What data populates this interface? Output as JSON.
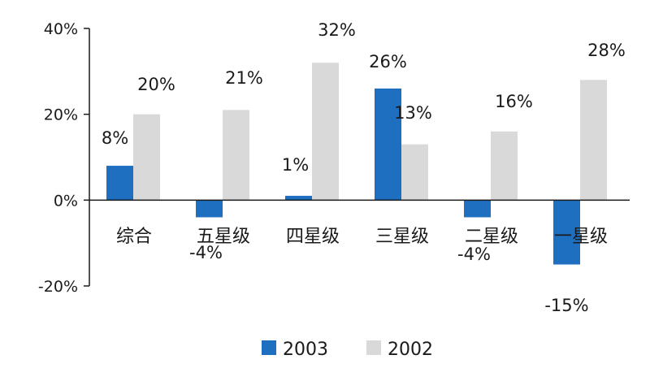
{
  "chart_data": {
    "type": "bar",
    "categories": [
      "综合",
      "五星级",
      "四星级",
      "三星级",
      "二星级",
      "一星级"
    ],
    "series": [
      {
        "name": "2003",
        "color": "#1f6fc1",
        "values": [
          8,
          -4,
          1,
          26,
          -4,
          -15
        ],
        "labels": [
          "8%",
          "-4%",
          "1%",
          "26%",
          "-4%",
          "-15%"
        ]
      },
      {
        "name": "2002",
        "color": "#d9d9d9",
        "values": [
          20,
          21,
          32,
          13,
          16,
          28
        ],
        "labels": [
          "20%",
          "21%",
          "32%",
          "13%",
          "16%",
          "28%"
        ]
      }
    ],
    "ylim": [
      -20,
      40
    ],
    "yticks": [
      -20,
      0,
      20,
      40
    ],
    "ytick_labels": [
      "-20%",
      "0%",
      "20%",
      "40%"
    ],
    "grid": false,
    "legend_position": "bottom"
  }
}
